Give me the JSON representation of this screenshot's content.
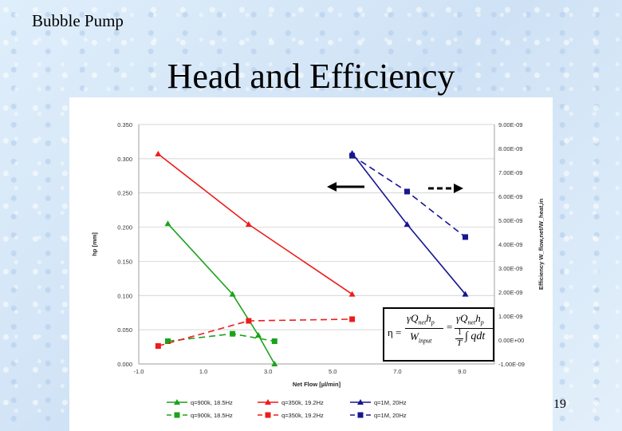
{
  "slide": {
    "label": "Bubble Pump",
    "title": "Head and Efficiency",
    "page_number": "19"
  },
  "formula": {
    "eta": "η =",
    "num1": "γQ",
    "num1_sub": "net",
    "num1_tail": "h",
    "num1_tail_sub": "p",
    "den1": "W",
    "den1_sub": "input",
    "eq": "=",
    "num2": "γQ",
    "num2_sub": "net",
    "num2_tail": "h",
    "num2_tail_sub": "p",
    "den2_frac_num": "1",
    "den2_frac_den": "T",
    "den2_tail": "∫ qdt"
  },
  "arrows": {
    "left_arrow": "solid-left-arrow",
    "right_arrow": "dashed-right-arrow"
  },
  "chart_data": {
    "type": "line",
    "xlabel": "Net Flow [µl/min]",
    "ylabel_left": "hp [mm]",
    "ylabel_right": "Efficiency W_flow,net/W_heat,in",
    "x_ticks": [
      "-1.0",
      "1.0",
      "3.0",
      "5.0",
      "7.0",
      "9.0"
    ],
    "x_tick_values": [
      -1,
      1,
      3,
      5,
      7,
      9
    ],
    "xlim": [
      -1,
      10
    ],
    "y_left_ticks": [
      "0.000",
      "0.050",
      "0.100",
      "0.150",
      "0.200",
      "0.250",
      "0.300",
      "0.350"
    ],
    "y_left_values": [
      0,
      0.05,
      0.1,
      0.15,
      0.2,
      0.25,
      0.3,
      0.35
    ],
    "ylim_left": [
      0,
      0.35
    ],
    "y_right_ticks": [
      "-1.00E-09",
      "0.00E+00",
      "1.00E-09",
      "2.00E-09",
      "3.00E-09",
      "4.00E-09",
      "5.00E-09",
      "6.00E-09",
      "7.00E-09",
      "8.00E-09",
      "9.00E-09"
    ],
    "y_right_values": [
      -1e-09,
      0,
      1e-09,
      2e-09,
      3e-09,
      4e-09,
      5e-09,
      6e-09,
      7e-09,
      8e-09,
      9e-09
    ],
    "ylim_right": [
      -1e-09,
      9e-09
    ],
    "grid": true,
    "legend_position": "bottom",
    "series": [
      {
        "name": "q=900k, 18.5Hz",
        "axis": "left",
        "color": "#1aa31a",
        "style": "solid",
        "marker": "triangle",
        "x": [
          -0.1,
          1.9,
          2.7,
          3.2
        ],
        "y": [
          0.205,
          0.102,
          0.042,
          0.0
        ]
      },
      {
        "name": "q=350k, 19.2Hz",
        "axis": "left",
        "color": "#ee1c1c",
        "style": "solid",
        "marker": "triangle",
        "x": [
          -0.4,
          2.4,
          5.6
        ],
        "y": [
          0.307,
          0.204,
          0.102
        ]
      },
      {
        "name": "q=1M, 20Hz",
        "axis": "left",
        "color": "#16168f",
        "style": "solid",
        "marker": "triangle",
        "x": [
          5.6,
          7.3,
          9.1
        ],
        "y": [
          0.308,
          0.204,
          0.102
        ]
      },
      {
        "name": "q=900k, 18.5Hz",
        "axis": "right",
        "color": "#1aa31a",
        "style": "dashed",
        "marker": "square",
        "x": [
          -0.1,
          1.9,
          3.2
        ],
        "y": [
          -5e-11,
          2.6e-10,
          -5e-11
        ]
      },
      {
        "name": "q=350k, 19.2Hz",
        "axis": "right",
        "color": "#ee1c1c",
        "style": "dashed",
        "marker": "square",
        "x": [
          -0.4,
          2.4,
          5.6
        ],
        "y": [
          -2.5e-10,
          8e-10,
          8.7e-10
        ]
      },
      {
        "name": "q=1M, 20Hz",
        "axis": "right",
        "color": "#16168f",
        "style": "dashed",
        "marker": "square",
        "x": [
          5.6,
          7.3,
          9.1
        ],
        "y": [
          7.7e-09,
          6.2e-09,
          4.3e-09
        ]
      }
    ]
  }
}
